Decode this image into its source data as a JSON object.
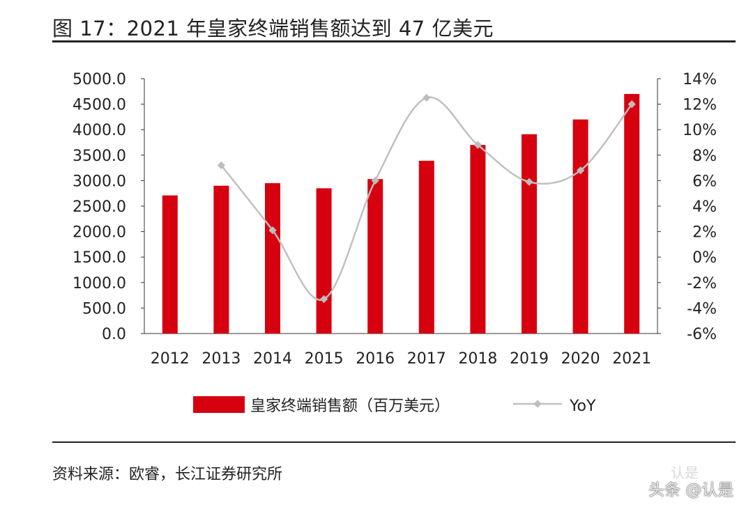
{
  "figure": {
    "title": "图 17：2021 年皇家终端销售额达到 47 亿美元",
    "source": "资料来源：欧睿，长江证券研究所",
    "watermark_top": "认是",
    "watermark_bottom": "头条 @认是"
  },
  "chart_data": {
    "type": "bar",
    "categories": [
      "2012",
      "2013",
      "2014",
      "2015",
      "2016",
      "2017",
      "2018",
      "2019",
      "2020",
      "2021"
    ],
    "series": [
      {
        "name": "皇家终端销售额（百万美元）",
        "type": "bar",
        "axis": "left",
        "color": "#d7000f",
        "values": [
          2710,
          2900,
          2950,
          2850,
          3030,
          3390,
          3700,
          3910,
          4200,
          4700
        ]
      },
      {
        "name": "YoY",
        "type": "line",
        "axis": "right",
        "color": "#c0c0c0",
        "values": [
          null,
          0.072,
          0.021,
          -0.033,
          0.06,
          0.125,
          0.088,
          0.059,
          0.068,
          0.12
        ]
      }
    ],
    "ylim": [
      0,
      5000
    ],
    "y_ticks": [
      "0.0",
      "500.0",
      "1000.0",
      "1500.0",
      "2000.0",
      "2500.0",
      "3000.0",
      "3500.0",
      "4000.0",
      "4500.0",
      "5000.0"
    ],
    "y2lim": [
      -0.06,
      0.14
    ],
    "y2_ticks": [
      "-6%",
      "-4%",
      "-2%",
      "0%",
      "2%",
      "4%",
      "6%",
      "8%",
      "10%",
      "12%",
      "14%"
    ],
    "grid": false,
    "legend_position": "bottom"
  }
}
